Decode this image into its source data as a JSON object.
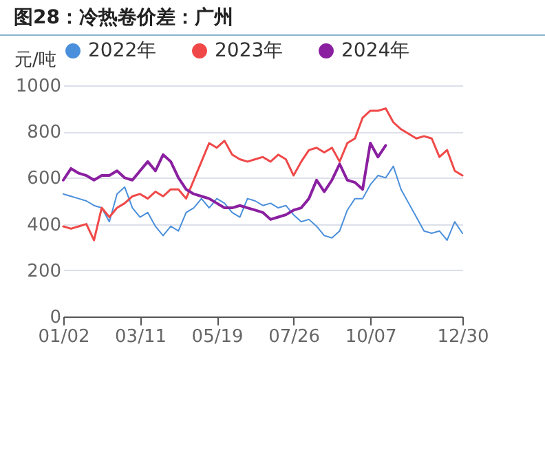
{
  "chart_data": {
    "type": "line",
    "title": "图28：冷热卷价差：广州",
    "ylabel": "元/吨",
    "categories": [
      "01/02",
      null,
      null,
      null,
      null,
      null,
      null,
      null,
      null,
      null,
      "03/11",
      null,
      null,
      null,
      null,
      null,
      null,
      null,
      null,
      null,
      "05/19",
      null,
      null,
      null,
      null,
      null,
      null,
      null,
      null,
      null,
      "07/26",
      null,
      null,
      null,
      null,
      null,
      null,
      null,
      null,
      null,
      "10/07",
      null,
      null,
      null,
      null,
      null,
      null,
      null,
      null,
      null,
      null,
      null,
      "12/30"
    ],
    "series": [
      {
        "name": "2022年",
        "color": "#4a8fdb",
        "values": [
          530,
          520,
          510,
          500,
          480,
          470,
          410,
          530,
          560,
          470,
          430,
          450,
          390,
          350,
          390,
          370,
          450,
          470,
          510,
          470,
          510,
          490,
          450,
          430,
          510,
          500,
          480,
          490,
          470,
          480,
          440,
          410,
          420,
          390,
          350,
          340,
          370,
          460,
          510,
          510,
          570,
          610,
          600,
          650,
          550,
          490,
          430,
          370,
          360,
          370,
          330,
          410,
          360
        ]
      },
      {
        "name": "2023年",
        "color": "#f04848",
        "values": [
          390,
          380,
          390,
          400,
          330,
          470,
          430,
          470,
          490,
          520,
          530,
          510,
          540,
          520,
          550,
          550,
          510,
          590,
          670,
          750,
          730,
          760,
          700,
          680,
          670,
          680,
          690,
          670,
          700,
          680,
          610,
          670,
          720,
          730,
          710,
          730,
          670,
          750,
          770,
          860,
          890,
          890,
          900,
          840,
          810,
          790,
          770,
          780,
          770,
          690,
          720,
          630,
          610
        ]
      },
      {
        "name": "2024年",
        "color": "#8a1fa0",
        "values": [
          590,
          640,
          620,
          610,
          590,
          610,
          610,
          630,
          600,
          590,
          630,
          670,
          630,
          700,
          670,
          600,
          550,
          530,
          520,
          510,
          490,
          470,
          470,
          480,
          470,
          460,
          450,
          420,
          430,
          440,
          460,
          470,
          510,
          590,
          540,
          590,
          660,
          590,
          580,
          550,
          750,
          690,
          740,
          null,
          null,
          null,
          null,
          null,
          null,
          null,
          null,
          null,
          null
        ]
      }
    ],
    "ylim": [
      0,
      1000
    ],
    "yticks": [
      0,
      200,
      400,
      600,
      800,
      1000
    ],
    "grid": "y",
    "legend": "top",
    "marker": "none"
  }
}
